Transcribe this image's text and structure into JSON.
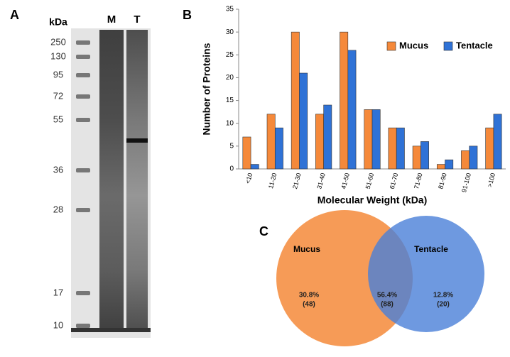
{
  "panel_labels": [
    "A",
    "B",
    "C"
  ],
  "gel": {
    "unit_label": "kDa",
    "lanes": [
      "M",
      "T"
    ],
    "markers": [
      250,
      130,
      95,
      72,
      55,
      36,
      28,
      17,
      10
    ]
  },
  "chart_data": [
    {
      "type": "bar",
      "ylabel": "Number of Proteins",
      "xlabel": "Molecular Weight (kDa)",
      "categories": [
        "<10",
        "11-20",
        "21-30",
        "31-40",
        "41-50",
        "51-60",
        "61-70",
        "71-80",
        "81-90",
        "91-100",
        ">100"
      ],
      "series": [
        {
          "name": "Mucus",
          "color": "#f5893a",
          "values": [
            7,
            12,
            30,
            12,
            30,
            13,
            9,
            5,
            1,
            4,
            9
          ]
        },
        {
          "name": "Tentacle",
          "color": "#2f72d6",
          "values": [
            1,
            9,
            21,
            14,
            26,
            13,
            9,
            6,
            2,
            5,
            12
          ]
        }
      ],
      "ylim": [
        0,
        35
      ],
      "yticks": [
        0,
        5,
        10,
        15,
        20,
        25,
        30,
        35
      ],
      "legend": "upper right"
    },
    {
      "type": "venn",
      "sets": [
        "Mucus",
        "Tentacle"
      ],
      "colors": [
        "#f5893a",
        "#4a7fd8"
      ],
      "values": [
        30.8,
        56.4,
        12.8
      ],
      "value_labels": [
        "30.8%",
        "56.4%",
        "12.8%"
      ],
      "counts": [
        48,
        88,
        20
      ],
      "count_labels": [
        "(48)",
        "(88)",
        "(20)"
      ]
    }
  ]
}
